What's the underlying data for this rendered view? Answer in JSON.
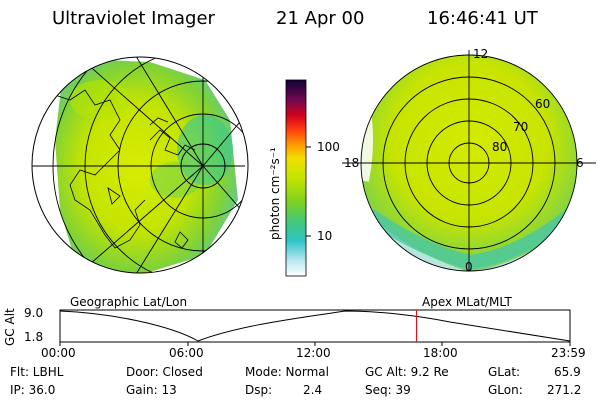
{
  "header": {
    "title": "Ultraviolet Imager",
    "date": "21 Apr 00",
    "time": "16:46:41 UT"
  },
  "colorbar": {
    "unit_label": "photon cm⁻²s⁻¹",
    "ticks": [
      "100",
      "10"
    ]
  },
  "left_panel": {
    "label": "Geographic Lat/Lon"
  },
  "right_panel": {
    "label": "Apex MLat/MLT",
    "lat_labels": [
      "60",
      "70",
      "80"
    ],
    "mlt_labels": [
      "12",
      "18",
      "6",
      "0"
    ]
  },
  "altitude_plot": {
    "ylabel": "GC Alt",
    "yticks": [
      "9.0",
      "1.8"
    ],
    "xticks": [
      "00:00",
      "06:00",
      "12:00",
      "18:00",
      "23:59"
    ],
    "marker_time": "16:46:41",
    "marker_color": "#d41a1a"
  },
  "footer": {
    "flt": "Flt: LBHL",
    "ip": "IP: 36.0",
    "door": "Door: Closed",
    "gain": "Gain: 13",
    "mode": "Mode: Normal",
    "dsp_label": "Dsp:",
    "dsp_value": "2.4",
    "gcalt": "GC Alt: 9.2 Re",
    "seq": "Seq: 39",
    "glat_label": "GLat:",
    "glat_value": "65.9",
    "glon_label": "GLon:",
    "glon_value": "271.2"
  }
}
